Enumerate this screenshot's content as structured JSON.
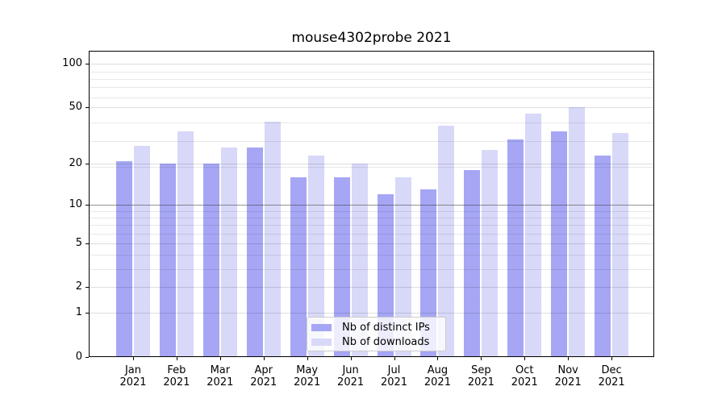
{
  "title": "mouse4302probe 2021",
  "colors": {
    "ips": "#a6a6f5",
    "downloads": "#d8d8f8",
    "spine": "#000000",
    "grid_light": "rgba(0,0,0,0.09)",
    "grid_dark_line_at_10": "rgba(60,60,60,0.55)",
    "legend_border": "#cccccc"
  },
  "legend": {
    "items": [
      {
        "label": "Nb of distinct IPs",
        "color_key": "ips"
      },
      {
        "label": "Nb of downloads",
        "color_key": "downloads"
      }
    ]
  },
  "chart_data": {
    "type": "bar",
    "title": "mouse4302probe 2021",
    "scale": "log10(1+y) (symlog-like, 0 at baseline)",
    "year": "2021",
    "months": [
      "Jan",
      "Feb",
      "Mar",
      "Apr",
      "May",
      "Jun",
      "Jul",
      "Aug",
      "Sep",
      "Oct",
      "Nov",
      "Dec"
    ],
    "categories": [
      "Jan 2021",
      "Feb 2021",
      "Mar 2021",
      "Apr 2021",
      "May 2021",
      "Jun 2021",
      "Jul 2021",
      "Aug 2021",
      "Sep 2021",
      "Oct 2021",
      "Nov 2021",
      "Dec 2021"
    ],
    "series": [
      {
        "name": "Nb of distinct IPs",
        "values": [
          21,
          20,
          20,
          26,
          16,
          16,
          12,
          13,
          18,
          30,
          34,
          23
        ]
      },
      {
        "name": "Nb of downloads",
        "values": [
          27,
          34,
          26,
          40,
          23,
          20,
          16,
          37,
          25,
          45,
          50,
          33
        ]
      }
    ],
    "y_ticks": [
      0,
      1,
      2,
      5,
      10,
      20,
      50,
      100
    ],
    "ylim": [
      0,
      124
    ],
    "grid": "on",
    "minor_grid_u_values": [
      4,
      5,
      7,
      8,
      9,
      10,
      20,
      30,
      40,
      60,
      70,
      80,
      90
    ],
    "dark_gridline_at_value": 10,
    "legend_position": "lower center"
  }
}
